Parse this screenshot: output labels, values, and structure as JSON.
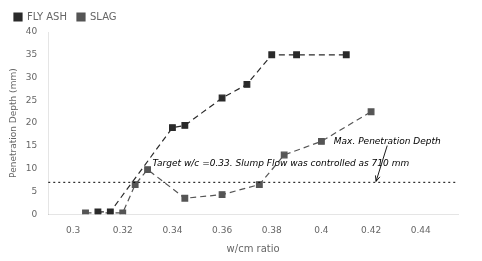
{
  "chart_data": {
    "type": "line",
    "xlabel": "w/cm ratio",
    "ylabel": "Penetration Depth (mm)",
    "series": [
      {
        "name": "FLY ASH",
        "color": "#2a2a2a",
        "marker": "square",
        "line_style": "dashed",
        "x": [
          0.31,
          0.315,
          0.34,
          0.345,
          0.36,
          0.37,
          0.38,
          0.39,
          0.41
        ],
        "values": [
          0.5,
          0.5,
          19.0,
          19.5,
          25.5,
          28.5,
          35.0,
          35.0,
          35.0
        ]
      },
      {
        "name": "SLAG",
        "color": "#555555",
        "marker": "square",
        "line_style": "dashed",
        "x": [
          0.305,
          0.32,
          0.325,
          0.33,
          0.345,
          0.36,
          0.375,
          0.385,
          0.4,
          0.42
        ],
        "values": [
          0.3,
          0.3,
          6.5,
          9.8,
          3.5,
          4.3,
          6.5,
          13.0,
          16.0,
          22.5
        ]
      }
    ],
    "hlines": [
      {
        "y": 7.0,
        "color": "black",
        "line_style": "dotted"
      }
    ],
    "annotations": [
      {
        "text": "Target w/c =0.33. Slump Flow was controlled as 710 mm",
        "x": 0.332,
        "y": 10.5
      },
      {
        "text": "Max. Penetration Depth",
        "x": 0.405,
        "y": 15.5,
        "arrow_x": 0.422,
        "arrow_y": 7.2
      }
    ],
    "xlim": [
      0.29,
      0.455
    ],
    "ylim": [
      0,
      40
    ],
    "xticks": [
      0.3,
      0.32,
      0.34,
      0.36,
      0.38,
      0.4,
      0.42,
      0.44
    ],
    "yticks": [
      0,
      5,
      10,
      15,
      20,
      25,
      30,
      35,
      40
    ],
    "grid": false,
    "legend": "upper left"
  }
}
